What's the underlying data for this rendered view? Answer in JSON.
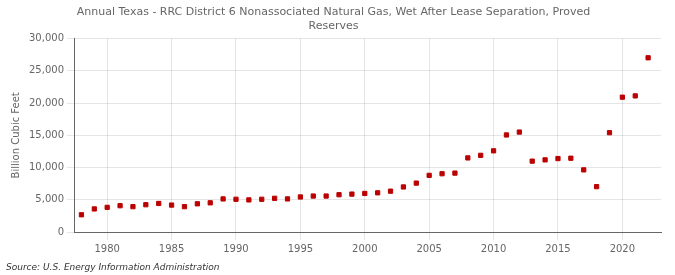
{
  "chart_data": {
    "type": "scatter",
    "title": "Annual Texas - RRC District 6 Nonassociated Natural Gas, Wet After Lease Separation, Proved\nReserves",
    "ylabel": "Billion Cubic Feet",
    "source": "Source: U.S. Energy Information Administration",
    "x": [
      1978,
      1979,
      1980,
      1981,
      1982,
      1983,
      1984,
      1985,
      1986,
      1987,
      1988,
      1989,
      1990,
      1991,
      1992,
      1993,
      1994,
      1995,
      1996,
      1997,
      1998,
      1999,
      2000,
      2001,
      2002,
      2003,
      2004,
      2005,
      2006,
      2007,
      2008,
      2009,
      2010,
      2011,
      2012,
      2013,
      2014,
      2015,
      2016,
      2017,
      2018,
      2019,
      2020,
      2021,
      2022
    ],
    "values": [
      2700,
      3600,
      3850,
      4100,
      3950,
      4250,
      4450,
      4200,
      3950,
      4400,
      4550,
      5150,
      5100,
      5000,
      5100,
      5250,
      5150,
      5450,
      5600,
      5600,
      5800,
      5900,
      6000,
      6100,
      6350,
      7000,
      7600,
      8800,
      9050,
      9150,
      11500,
      11900,
      12600,
      15050,
      15500,
      11000,
      11200,
      11400,
      11450,
      9650,
      7050,
      15400,
      20900,
      21100,
      27000
    ],
    "color": "#bb0000",
    "marker": "square",
    "xlim": [
      1977.5,
      2023
    ],
    "xticks": [
      1980,
      1985,
      1990,
      1995,
      2000,
      2005,
      2010,
      2015,
      2020
    ],
    "ylim": [
      0,
      30000
    ],
    "yticks": [
      0,
      {
        "value": 5000,
        "label": "5,000"
      },
      {
        "value": 10000,
        "label": "10,000"
      },
      {
        "value": 15000,
        "label": "15,000"
      },
      {
        "value": 20000,
        "label": "20,000"
      },
      {
        "value": 25000,
        "label": "25,000"
      },
      {
        "value": 30000,
        "label": "30,000"
      }
    ],
    "grid": true
  }
}
